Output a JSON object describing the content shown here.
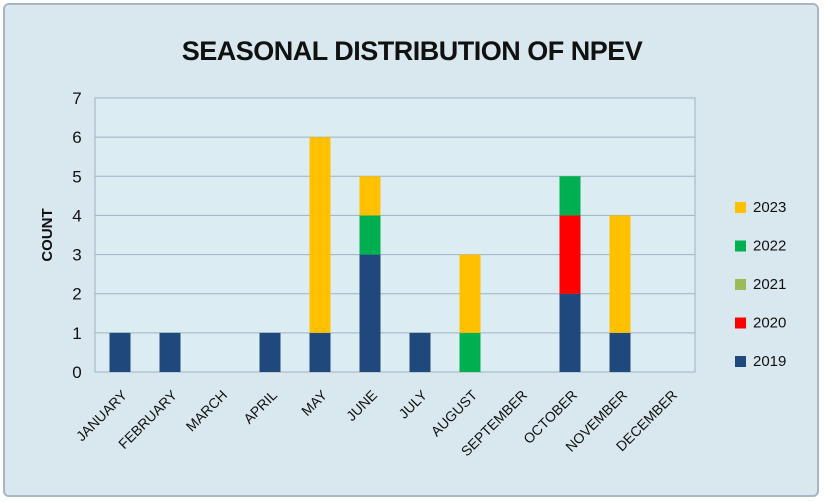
{
  "chart_data": {
    "type": "bar",
    "stacked": true,
    "title": "SEASONAL DISTRIBUTION OF NPEV",
    "xlabel": "",
    "ylabel": "COUNT",
    "ylim": [
      0,
      7
    ],
    "yticks": [
      0,
      1,
      2,
      3,
      4,
      5,
      6,
      7
    ],
    "grid": true,
    "legend_position": "right",
    "categories": [
      "JANUARY",
      "FEBRUARY",
      "MARCH",
      "APRIL",
      "MAY",
      "JUNE",
      "JULY",
      "AUGUST",
      "SEPTEMBER",
      "OCTOBER",
      "NOVEMBER",
      "DECEMBER"
    ],
    "series": [
      {
        "name": "2019",
        "color": "#1f497d",
        "values": [
          1,
          1,
          0,
          1,
          1,
          3,
          1,
          0,
          0,
          2,
          1,
          0
        ]
      },
      {
        "name": "2020",
        "color": "#ff0000",
        "values": [
          0,
          0,
          0,
          0,
          0,
          0,
          0,
          0,
          0,
          2,
          0,
          0
        ]
      },
      {
        "name": "2021",
        "color": "#9bbb59",
        "values": [
          0,
          0,
          0,
          0,
          0,
          0,
          0,
          0,
          0,
          0,
          0,
          0
        ]
      },
      {
        "name": "2022",
        "color": "#00b050",
        "values": [
          0,
          0,
          0,
          0,
          0,
          1,
          0,
          1,
          0,
          1,
          0,
          0
        ]
      },
      {
        "name": "2023",
        "color": "#ffc000",
        "values": [
          0,
          0,
          0,
          0,
          5,
          1,
          0,
          2,
          0,
          0,
          3,
          0
        ]
      }
    ]
  }
}
